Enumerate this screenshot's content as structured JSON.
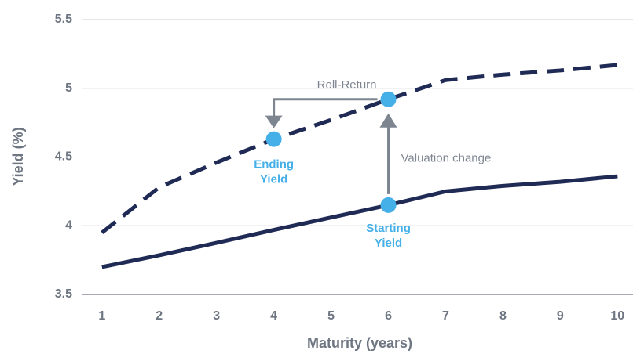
{
  "chart_data": {
    "type": "line",
    "x_label": "Maturity (years)",
    "y_label": "Yield (%)",
    "x": [
      1,
      2,
      3,
      4,
      5,
      6,
      7,
      8,
      9,
      10
    ],
    "series": [
      {
        "color": "#1f2a55",
        "dashed": true,
        "values": [
          3.95,
          4.28,
          4.46,
          4.63,
          4.77,
          4.92,
          5.06,
          5.1,
          5.13,
          5.17
        ]
      },
      {
        "color": "#1f2a55",
        "dashed": false,
        "values": [
          3.7,
          3.785,
          3.876,
          3.97,
          4.06,
          4.15,
          4.25,
          4.29,
          4.32,
          4.36
        ]
      }
    ],
    "xlim": [
      0.66,
      10.27
    ],
    "xticks": [
      1,
      2,
      3,
      4,
      5,
      6,
      7,
      8,
      9,
      10
    ],
    "ylim": [
      3.5,
      5.5
    ],
    "yticks": [
      3.5,
      4,
      4.5,
      5,
      5.5
    ],
    "grid": true,
    "point_color": "#45b0e8",
    "annotations": {
      "roll_return": "Roll-Return",
      "valuation_change": "Valuation change",
      "ending_yield": "Ending Yield",
      "starting_yield": "Starting Yield"
    }
  }
}
